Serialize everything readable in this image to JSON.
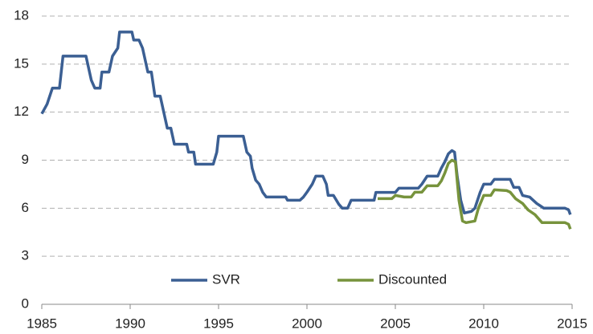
{
  "chart_data": {
    "type": "line",
    "series": [
      {
        "name": "SVR",
        "color": "#3b5f93",
        "x": [
          1985.0,
          1985.3,
          1985.6,
          1986.0,
          1986.2,
          1987.5,
          1987.8,
          1988.0,
          1988.3,
          1988.4,
          1988.8,
          1989.0,
          1989.3,
          1989.4,
          1990.1,
          1990.2,
          1990.5,
          1990.7,
          1991.0,
          1991.2,
          1991.4,
          1991.7,
          1991.9,
          1992.1,
          1992.3,
          1992.4,
          1992.5,
          1993.2,
          1993.3,
          1993.6,
          1993.7,
          1994.7,
          1994.9,
          1995.0,
          1996.4,
          1996.6,
          1996.8,
          1996.9,
          1997.1,
          1997.3,
          1997.5,
          1997.7,
          1998.8,
          1998.9,
          1999.6,
          1999.8,
          2000.0,
          2000.3,
          2000.5,
          2000.9,
          2001.1,
          2001.2,
          2001.5,
          2001.8,
          2002.0,
          2002.3,
          2002.5,
          2003.8,
          2003.9,
          2005.0,
          2005.2,
          2006.3,
          2006.5,
          2006.8,
          2007.4,
          2007.6,
          2007.8,
          2008.0,
          2008.2,
          2008.35,
          2008.5,
          2008.7,
          2008.9,
          2009.3,
          2009.5,
          2009.8,
          2010.0,
          2010.4,
          2010.6,
          2011.5,
          2011.7,
          2012.0,
          2012.2,
          2012.6,
          2013.0,
          2013.4,
          2014.6,
          2014.8,
          2014.9
        ],
        "values": [
          11.9,
          12.5,
          13.5,
          13.5,
          15.5,
          15.5,
          14.0,
          13.5,
          13.5,
          14.5,
          14.5,
          15.5,
          16.0,
          17.0,
          17.0,
          16.5,
          16.5,
          16.0,
          14.5,
          14.5,
          13.0,
          13.0,
          12.0,
          11.0,
          11.0,
          10.5,
          10.0,
          10.0,
          9.5,
          9.5,
          8.75,
          8.75,
          9.5,
          10.5,
          10.5,
          9.5,
          9.25,
          8.5,
          7.75,
          7.5,
          6.99,
          6.7,
          6.7,
          6.5,
          6.5,
          6.7,
          7.0,
          7.5,
          8.0,
          8.0,
          7.5,
          6.8,
          6.8,
          6.25,
          6.0,
          6.0,
          6.5,
          6.5,
          6.99,
          6.99,
          7.25,
          7.25,
          7.5,
          8.0,
          8.0,
          8.5,
          8.9,
          9.4,
          9.6,
          9.5,
          8.0,
          6.5,
          5.7,
          5.8,
          6.0,
          7.0,
          7.5,
          7.5,
          7.8,
          7.8,
          7.3,
          7.3,
          6.8,
          6.7,
          6.3,
          6.0,
          6.0,
          5.9,
          5.6
        ]
      },
      {
        "name": "Discounted",
        "color": "#77933c",
        "x": [
          2004.0,
          2004.8,
          2005.0,
          2005.5,
          2005.9,
          2006.1,
          2006.5,
          2006.8,
          2007.4,
          2007.6,
          2007.8,
          2008.0,
          2008.2,
          2008.4,
          2008.6,
          2008.8,
          2009.0,
          2009.5,
          2009.7,
          2010.0,
          2010.4,
          2010.6,
          2011.3,
          2011.5,
          2011.8,
          2012.2,
          2012.5,
          2012.9,
          2013.3,
          2014.6,
          2014.8,
          2014.9
        ],
        "values": [
          6.6,
          6.6,
          6.8,
          6.7,
          6.7,
          7.0,
          7.0,
          7.4,
          7.4,
          7.7,
          8.2,
          8.8,
          9.0,
          8.9,
          6.5,
          5.2,
          5.1,
          5.2,
          6.0,
          6.8,
          6.8,
          7.15,
          7.1,
          7.0,
          6.6,
          6.3,
          5.9,
          5.6,
          5.1,
          5.1,
          5.0,
          4.7
        ]
      }
    ],
    "xlim": [
      1985,
      2015
    ],
    "xticks": [
      1985,
      1990,
      1995,
      2000,
      2005,
      2010,
      2015
    ],
    "ylim": [
      0,
      18
    ],
    "yticks": [
      0,
      3,
      6,
      9,
      12,
      15,
      18
    ],
    "grid": true,
    "legend": "lower center"
  }
}
